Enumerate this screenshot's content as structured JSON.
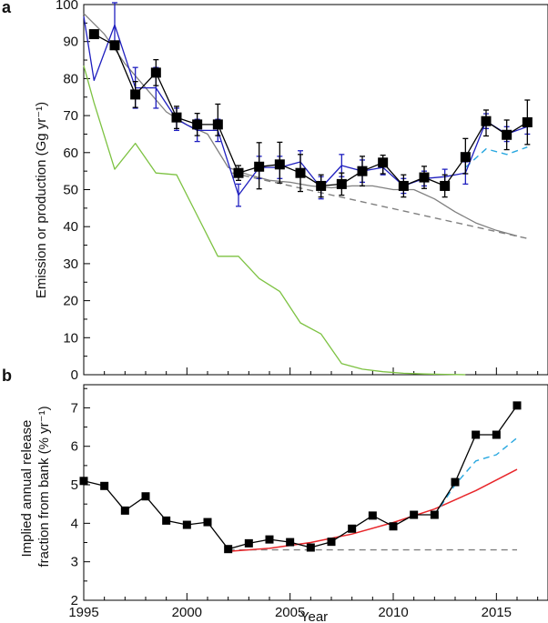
{
  "chart_data": [
    {
      "panel": "a",
      "type": "line",
      "ylabel": "Emission or production (Gg yr⁻¹)",
      "xlim": [
        1995,
        2017.5
      ],
      "ylim": [
        0,
        100
      ],
      "yticks": [
        0,
        10,
        20,
        30,
        40,
        50,
        60,
        70,
        80,
        90,
        100
      ],
      "grid": false,
      "series": [
        {
          "style": "black-squares",
          "color": "#000000",
          "x": [
            1995.5,
            1996.5,
            1997.5,
            1998.5,
            1999.5,
            2000.5,
            2001.5,
            2002.5,
            2003.5,
            2004.5,
            2005.5,
            2006.5,
            2007.5,
            2008.5,
            2009.5,
            2010.5,
            2011.5,
            2012.5,
            2013.5,
            2014.5,
            2015.5,
            2016.5
          ],
          "y": [
            92,
            89,
            75.7,
            81.6,
            69.5,
            67.6,
            67.6,
            54.5,
            56.2,
            56.8,
            54.5,
            51,
            51.5,
            55,
            57.3,
            51,
            53.3,
            51,
            58.8,
            68.5,
            64.8,
            68.2
          ],
          "err_low": [
            0,
            0,
            3.5,
            3.5,
            3,
            3,
            3,
            2,
            6,
            5,
            5,
            3,
            3,
            4,
            3,
            3,
            3,
            3,
            4.5,
            4,
            4,
            6
          ],
          "err_high": [
            0,
            0,
            3.5,
            3.5,
            3,
            3,
            5.5,
            2,
            6.5,
            6,
            5,
            3,
            3,
            4,
            2,
            3,
            3,
            3,
            5,
            3,
            4,
            6
          ]
        },
        {
          "style": "blue-line",
          "color": "#1f1fbf",
          "x": [
            1995,
            1995.5,
            1996.5,
            1997.5,
            1998.5,
            1999.5,
            2000.5,
            2001.5,
            2002.5,
            2003.5,
            2004.5,
            2005.5,
            2006.5,
            2007.5,
            2008.5,
            2009.5,
            2010.5,
            2011.5,
            2012.5,
            2013.5,
            2014.5,
            2015.5,
            2016.5
          ],
          "y": [
            96.8,
            79.5,
            94.5,
            77.5,
            77.5,
            69,
            66,
            66,
            48.5,
            56,
            56,
            57.5,
            50.5,
            56.5,
            55,
            56,
            51,
            53,
            53.5,
            54.5,
            68.5,
            65,
            67
          ],
          "err_low": [
            0,
            0,
            6,
            5.5,
            5.5,
            3,
            3,
            3,
            3,
            3,
            3,
            3,
            3,
            3,
            3,
            2,
            2,
            2,
            2,
            3,
            2,
            2,
            2
          ],
          "err_high": [
            0,
            0,
            6,
            5.5,
            5.5,
            3,
            3,
            3,
            3,
            3,
            3,
            3,
            3,
            3,
            3,
            2,
            2,
            2,
            2,
            3,
            2,
            2,
            2
          ]
        },
        {
          "style": "grey-line",
          "color": "#808080",
          "x": [
            1995,
            1996,
            1997,
            1998,
            1999,
            2000,
            2001,
            2002,
            2003,
            2004,
            2005,
            2006,
            2007,
            2008,
            2009,
            2010,
            2011,
            2012,
            2013,
            2014,
            2015,
            2016
          ],
          "y": [
            97.6,
            92,
            84,
            77.5,
            71,
            67.5,
            65,
            56,
            54,
            52.5,
            52,
            51,
            50.5,
            51,
            51,
            50,
            50,
            47.5,
            44,
            41,
            39,
            37.5
          ]
        },
        {
          "style": "grey-dashed",
          "color": "#808080",
          "x": [
            2002.2,
            2016.5
          ],
          "y": [
            54.5,
            36.8
          ]
        },
        {
          "style": "green-line",
          "color": "#7dc242",
          "x": [
            1995,
            1995.5,
            1996.5,
            1997.5,
            1998.5,
            1999.5,
            2000.5,
            2001.5,
            2002.5,
            2003.5,
            2004.5,
            2005.5,
            2006.5,
            2007.5,
            2008.5,
            2009.5,
            2010.5,
            2011.5,
            2012.5,
            2013.5
          ],
          "y": [
            83.5,
            73.5,
            55.5,
            62.5,
            54.5,
            54,
            43,
            32,
            32,
            26,
            22.5,
            14,
            11,
            3,
            1.5,
            0.8,
            0.4,
            0.2,
            0.1,
            0
          ]
        },
        {
          "style": "cyan-dashed",
          "color": "#29a8e0",
          "x": [
            2013.5,
            2014.5,
            2015.5,
            2016.5
          ],
          "y": [
            56,
            61,
            59.5,
            61.5
          ]
        }
      ]
    },
    {
      "panel": "b",
      "type": "line",
      "xlabel": "Year",
      "ylabel": "Implied annual release fraction from bank (% yr⁻¹)",
      "xlim": [
        1995,
        2017.5
      ],
      "ylim": [
        2,
        7.6
      ],
      "yticks": [
        2,
        3,
        4,
        5,
        6,
        7
      ],
      "xticks": [
        1995,
        2000,
        2005,
        2010,
        2015
      ],
      "grid": false,
      "series": [
        {
          "style": "black-squares",
          "color": "#000000",
          "x": [
            1995,
            1996,
            1997,
            1998,
            1999,
            2000,
            2001,
            2002,
            2003,
            2004,
            2005,
            2006,
            2007,
            2008,
            2009,
            2010,
            2011,
            2012,
            2013,
            2014,
            2015,
            2016
          ],
          "y": [
            5.1,
            4.97,
            4.33,
            4.7,
            4.07,
            3.96,
            4.03,
            3.33,
            3.48,
            3.58,
            3.51,
            3.37,
            3.52,
            3.86,
            4.2,
            3.92,
            4.22,
            4.22,
            5.07,
            6.3,
            6.3,
            7.06
          ]
        },
        {
          "style": "red-line",
          "color": "#e8262a",
          "x": [
            2002,
            2004,
            2006,
            2008,
            2010,
            2012,
            2014,
            2016
          ],
          "y": [
            3.27,
            3.35,
            3.5,
            3.72,
            4.02,
            4.37,
            4.85,
            5.4
          ]
        },
        {
          "style": "grey-dashed",
          "color": "#808080",
          "x": [
            2002,
            2016
          ],
          "y": [
            3.31,
            3.31
          ]
        },
        {
          "style": "cyan-dashed",
          "color": "#29a8e0",
          "x": [
            2012,
            2013,
            2014,
            2015,
            2016
          ],
          "y": [
            4.2,
            5.0,
            5.62,
            5.78,
            6.22
          ]
        }
      ]
    }
  ]
}
